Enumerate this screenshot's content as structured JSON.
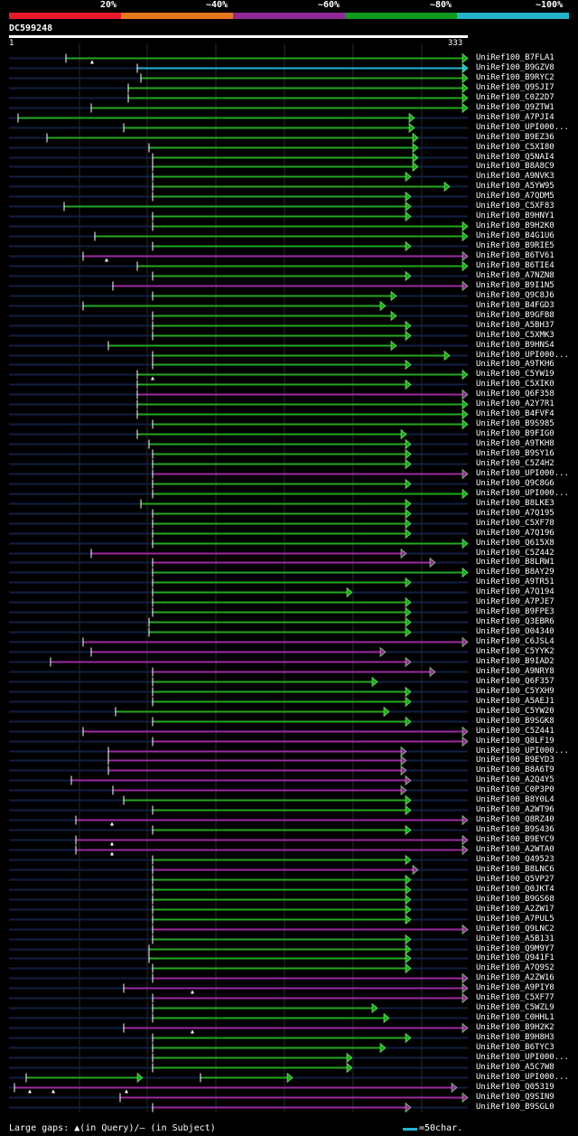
{
  "legend": [
    {
      "label": "20%",
      "color": "#e8192a"
    },
    {
      "label": "~40%",
      "color": "#e6781e"
    },
    {
      "label": "~60%",
      "color": "#8f2996"
    },
    {
      "label": "~80%",
      "color": "#0f9b1c"
    },
    {
      "label": "~100%",
      "color": "#24b3c9"
    }
  ],
  "query": {
    "id": "DC599248",
    "start": "1",
    "end": "333"
  },
  "colors": {
    "green": "#22a81e",
    "purple": "#9c2aa0",
    "cyan": "#24b3d6",
    "faint": "#111f44",
    "grid": "#2a2a2a"
  },
  "hits": [
    {
      "name": "UniRef100_B7FLA1",
      "color": "green",
      "s": 73,
      "e": 517,
      "marks": [
        102
      ]
    },
    {
      "name": "UniRef100_B9GZV8",
      "color": "cyan",
      "s": 152,
      "e": 517,
      "marks": []
    },
    {
      "name": "UniRef100_B9RYC2",
      "color": "green",
      "s": 156,
      "e": 517,
      "marks": []
    },
    {
      "name": "UniRef100_Q9SJI7",
      "color": "green",
      "s": 142,
      "e": 517,
      "marks": []
    },
    {
      "name": "UniRef100_C0Z2D7",
      "color": "green",
      "s": 142,
      "e": 517,
      "marks": []
    },
    {
      "name": "UniRef100_Q9ZTW1",
      "color": "green",
      "s": 101,
      "e": 517,
      "marks": []
    },
    {
      "name": "UniRef100_A7PJI4",
      "color": "green",
      "s": 20,
      "e": 458,
      "marks": []
    },
    {
      "name": "UniRef100_UPI000...",
      "color": "green",
      "s": 137,
      "e": 458,
      "marks": []
    },
    {
      "name": "UniRef100_B9EZ36",
      "color": "green",
      "s": 52,
      "e": 462,
      "marks": []
    },
    {
      "name": "UniRef100_C5XI80",
      "color": "green",
      "s": 165,
      "e": 462,
      "marks": []
    },
    {
      "name": "UniRef100_Q5NAI4",
      "color": "green",
      "s": 169,
      "e": 462,
      "marks": []
    },
    {
      "name": "UniRef100_B8A8C9",
      "color": "green",
      "s": 169,
      "e": 462,
      "marks": []
    },
    {
      "name": "UniRef100_A9NVK3",
      "color": "green",
      "s": 169,
      "e": 454,
      "marks": []
    },
    {
      "name": "UniRef100_A5YW95",
      "color": "green",
      "s": 169,
      "e": 497,
      "marks": []
    },
    {
      "name": "UniRef100_A7QDM5",
      "color": "green",
      "s": 169,
      "e": 454,
      "marks": []
    },
    {
      "name": "UniRef100_C5XF83",
      "color": "green",
      "s": 71,
      "e": 454,
      "marks": []
    },
    {
      "name": "UniRef100_B9HNY1",
      "color": "green",
      "s": 169,
      "e": 454,
      "marks": []
    },
    {
      "name": "UniRef100_B9H2K0",
      "color": "green",
      "s": 169,
      "e": 517,
      "marks": []
    },
    {
      "name": "UniRef100_B4G1U6",
      "color": "green",
      "s": 105,
      "e": 517,
      "marks": []
    },
    {
      "name": "UniRef100_B9RIE5",
      "color": "green",
      "s": 169,
      "e": 454,
      "marks": []
    },
    {
      "name": "UniRef100_B6TV61",
      "color": "purple",
      "s": 92,
      "e": 517,
      "marks": [
        118
      ]
    },
    {
      "name": "UniRef100_B6TIE4",
      "color": "green",
      "s": 152,
      "e": 517,
      "marks": []
    },
    {
      "name": "UniRef100_A7NZN8",
      "color": "green",
      "s": 169,
      "e": 454,
      "marks": []
    },
    {
      "name": "UniRef100_B9I1N5",
      "color": "purple",
      "s": 125,
      "e": 517,
      "marks": []
    },
    {
      "name": "UniRef100_Q9C8J6",
      "color": "green",
      "s": 169,
      "e": 438,
      "marks": []
    },
    {
      "name": "UniRef100_B4FGD3",
      "color": "green",
      "s": 92,
      "e": 426,
      "marks": []
    },
    {
      "name": "UniRef100_B9GFB8",
      "color": "green",
      "s": 169,
      "e": 438,
      "marks": []
    },
    {
      "name": "UniRef100_A5BH37",
      "color": "green",
      "s": 169,
      "e": 454,
      "marks": []
    },
    {
      "name": "UniRef100_C5XMK3",
      "color": "green",
      "s": 169,
      "e": 454,
      "marks": []
    },
    {
      "name": "UniRef100_B9HNS4",
      "color": "green",
      "s": 120,
      "e": 438,
      "marks": []
    },
    {
      "name": "UniRef100_UPI000...",
      "color": "green",
      "s": 169,
      "e": 497,
      "marks": []
    },
    {
      "name": "UniRef100_A9TKH6",
      "color": "green",
      "s": 169,
      "e": 454,
      "marks": []
    },
    {
      "name": "UniRef100_C5YW19",
      "color": "green",
      "s": 152,
      "e": 517,
      "marks": [
        169
      ]
    },
    {
      "name": "UniRef100_C5XIK0",
      "color": "green",
      "s": 152,
      "e": 454,
      "marks": []
    },
    {
      "name": "UniRef100_Q6F358",
      "color": "purple",
      "s": 152,
      "e": 517,
      "marks": []
    },
    {
      "name": "UniRef100_A2Y7R1",
      "color": "green",
      "s": 152,
      "e": 517,
      "marks": []
    },
    {
      "name": "UniRef100_B4FVF4",
      "color": "green",
      "s": 152,
      "e": 517,
      "marks": []
    },
    {
      "name": "UniRef100_B9S985",
      "color": "green",
      "s": 169,
      "e": 517,
      "marks": []
    },
    {
      "name": "UniRef100_B9FIG0",
      "color": "green",
      "s": 152,
      "e": 449,
      "marks": []
    },
    {
      "name": "UniRef100_A9TKH8",
      "color": "green",
      "s": 165,
      "e": 454,
      "marks": []
    },
    {
      "name": "UniRef100_B9SY16",
      "color": "green",
      "s": 169,
      "e": 454,
      "marks": []
    },
    {
      "name": "UniRef100_C5Z4H2",
      "color": "green",
      "s": 169,
      "e": 454,
      "marks": []
    },
    {
      "name": "UniRef100_UPI000...",
      "color": "purple",
      "s": 169,
      "e": 517,
      "marks": []
    },
    {
      "name": "UniRef100_Q9C8G6",
      "color": "green",
      "s": 169,
      "e": 454,
      "marks": []
    },
    {
      "name": "UniRef100_UPI000...",
      "color": "green",
      "s": 169,
      "e": 517,
      "marks": []
    },
    {
      "name": "UniRef100_B8LKE3",
      "color": "green",
      "s": 156,
      "e": 454,
      "marks": []
    },
    {
      "name": "UniRef100_A7Q195",
      "color": "green",
      "s": 169,
      "e": 454,
      "marks": []
    },
    {
      "name": "UniRef100_C5XF78",
      "color": "green",
      "s": 169,
      "e": 454,
      "marks": []
    },
    {
      "name": "UniRef100_A7Q196",
      "color": "green",
      "s": 169,
      "e": 454,
      "marks": []
    },
    {
      "name": "UniRef100_Q615X8",
      "color": "green",
      "s": 169,
      "e": 517,
      "marks": []
    },
    {
      "name": "UniRef100_C5Z442",
      "color": "purple",
      "s": 101,
      "e": 449,
      "marks": []
    },
    {
      "name": "UniRef100_B8LRW1",
      "color": "purple",
      "s": 169,
      "e": 481,
      "marks": []
    },
    {
      "name": "UniRef100_B8AY29",
      "color": "green",
      "s": 169,
      "e": 517,
      "marks": []
    },
    {
      "name": "UniRef100_A9TR51",
      "color": "green",
      "s": 169,
      "e": 454,
      "marks": []
    },
    {
      "name": "UniRef100_A7Q194",
      "color": "green",
      "s": 169,
      "e": 389,
      "marks": []
    },
    {
      "name": "UniRef100_A7PJE7",
      "color": "green",
      "s": 169,
      "e": 454,
      "marks": []
    },
    {
      "name": "UniRef100_B9FPE3",
      "color": "green",
      "s": 169,
      "e": 454,
      "marks": []
    },
    {
      "name": "UniRef100_Q3EBR6",
      "color": "green",
      "s": 165,
      "e": 454,
      "marks": []
    },
    {
      "name": "UniRef100_O04340",
      "color": "green",
      "s": 165,
      "e": 454,
      "marks": []
    },
    {
      "name": "UniRef100_C6JSL4",
      "color": "purple",
      "s": 92,
      "e": 517,
      "marks": []
    },
    {
      "name": "UniRef100_C5YYK2",
      "color": "purple",
      "s": 101,
      "e": 426,
      "marks": []
    },
    {
      "name": "UniRef100_B9IAD2",
      "color": "purple",
      "s": 56,
      "e": 454,
      "marks": []
    },
    {
      "name": "UniRef100_A9NRY8",
      "color": "purple",
      "s": 169,
      "e": 481,
      "marks": []
    },
    {
      "name": "UniRef100_Q6F357",
      "color": "green",
      "s": 169,
      "e": 417,
      "marks": []
    },
    {
      "name": "UniRef100_C5YXH9",
      "color": "green",
      "s": 169,
      "e": 454,
      "marks": []
    },
    {
      "name": "UniRef100_A5AEJ1",
      "color": "green",
      "s": 169,
      "e": 454,
      "marks": []
    },
    {
      "name": "UniRef100_C5YW20",
      "color": "green",
      "s": 128,
      "e": 430,
      "marks": []
    },
    {
      "name": "UniRef100_B9SGK8",
      "color": "green",
      "s": 169,
      "e": 454,
      "marks": []
    },
    {
      "name": "UniRef100_C5Z441",
      "color": "purple",
      "s": 92,
      "e": 517,
      "marks": []
    },
    {
      "name": "UniRef100_Q8LF19",
      "color": "purple",
      "s": 169,
      "e": 517,
      "marks": []
    },
    {
      "name": "UniRef100_UPI000...",
      "color": "purple",
      "s": 120,
      "e": 449,
      "marks": []
    },
    {
      "name": "UniRef100_B9EYD3",
      "color": "purple",
      "s": 120,
      "e": 449,
      "marks": []
    },
    {
      "name": "UniRef100_B8A6T9",
      "color": "purple",
      "s": 120,
      "e": 449,
      "marks": []
    },
    {
      "name": "UniRef100_A2Q4Y5",
      "color": "purple",
      "s": 79,
      "e": 454,
      "marks": []
    },
    {
      "name": "UniRef100_C0P3P0",
      "color": "purple",
      "s": 125,
      "e": 449,
      "marks": []
    },
    {
      "name": "UniRef100_B8Y0L4",
      "color": "green",
      "s": 137,
      "e": 454,
      "marks": []
    },
    {
      "name": "UniRef100_A2WT96",
      "color": "green",
      "s": 169,
      "e": 454,
      "marks": []
    },
    {
      "name": "UniRef100_Q8RZ40",
      "color": "purple",
      "s": 84,
      "e": 517,
      "marks": [
        124
      ]
    },
    {
      "name": "UniRef100_B9S436",
      "color": "green",
      "s": 169,
      "e": 454,
      "marks": []
    },
    {
      "name": "UniRef100_B9EYC9",
      "color": "purple",
      "s": 84,
      "e": 517,
      "marks": [
        124
      ]
    },
    {
      "name": "UniRef100_A2WTA0",
      "color": "purple",
      "s": 84,
      "e": 517,
      "marks": [
        124
      ]
    },
    {
      "name": "UniRef100_Q49523",
      "color": "green",
      "s": 169,
      "e": 454,
      "marks": []
    },
    {
      "name": "UniRef100_B8LNC6",
      "color": "purple",
      "s": 169,
      "e": 462,
      "marks": []
    },
    {
      "name": "UniRef100_Q5VP27",
      "color": "green",
      "s": 169,
      "e": 454,
      "marks": []
    },
    {
      "name": "UniRef100_Q0JKT4",
      "color": "green",
      "s": 169,
      "e": 454,
      "marks": []
    },
    {
      "name": "UniRef100_B9GS68",
      "color": "green",
      "s": 169,
      "e": 454,
      "marks": []
    },
    {
      "name": "UniRef100_A2ZW17",
      "color": "green",
      "s": 169,
      "e": 454,
      "marks": []
    },
    {
      "name": "UniRef100_A7PUL5",
      "color": "green",
      "s": 169,
      "e": 454,
      "marks": []
    },
    {
      "name": "UniRef100_Q9LNC2",
      "color": "purple",
      "s": 169,
      "e": 517,
      "marks": []
    },
    {
      "name": "UniRef100_A5B131",
      "color": "green",
      "s": 169,
      "e": 454,
      "marks": []
    },
    {
      "name": "UniRef100_Q9M9Y7",
      "color": "green",
      "s": 165,
      "e": 454,
      "marks": []
    },
    {
      "name": "UniRef100_Q941F1",
      "color": "green",
      "s": 165,
      "e": 454,
      "marks": []
    },
    {
      "name": "UniRef100_A7Q9S2",
      "color": "green",
      "s": 169,
      "e": 454,
      "marks": []
    },
    {
      "name": "UniRef100_A2ZW16",
      "color": "purple",
      "s": 169,
      "e": 517,
      "marks": []
    },
    {
      "name": "UniRef100_A9PIY8",
      "color": "purple",
      "s": 137,
      "e": 517,
      "marks": [
        213
      ]
    },
    {
      "name": "UniRef100_C5XF77",
      "color": "purple",
      "s": 169,
      "e": 517,
      "marks": []
    },
    {
      "name": "UniRef100_C5WZL9",
      "color": "green",
      "s": 169,
      "e": 417,
      "marks": []
    },
    {
      "name": "UniRef100_C0HHL1",
      "color": "green",
      "s": 169,
      "e": 430,
      "marks": []
    },
    {
      "name": "UniRef100_B9H2K2",
      "color": "purple",
      "s": 137,
      "e": 517,
      "marks": [
        213
      ]
    },
    {
      "name": "UniRef100_B9H8H3",
      "color": "green",
      "s": 169,
      "e": 454,
      "marks": []
    },
    {
      "name": "UniRef100_B6TYC3",
      "color": "green",
      "s": 169,
      "e": 426,
      "marks": []
    },
    {
      "name": "UniRef100_UPI000...",
      "color": "green",
      "s": 169,
      "e": 389,
      "marks": []
    },
    {
      "name": "UniRef100_A5C7W8",
      "color": "green",
      "s": 169,
      "e": 389,
      "marks": []
    },
    {
      "name": "UniRef100_UPI000...",
      "color": "green",
      "s": 29,
      "e": 157,
      "s2": 222,
      "e2": 323,
      "marks": []
    },
    {
      "name": "UniRef100_Q05319",
      "color": "purple",
      "s": 16,
      "e": 505,
      "marks": [
        33,
        59,
        140
      ]
    },
    {
      "name": "UniRef100_Q9SIN9",
      "color": "purple",
      "s": 133,
      "e": 517,
      "marks": []
    },
    {
      "name": "UniRef100_B9SGL0",
      "color": "purple",
      "s": 169,
      "e": 454,
      "marks": []
    }
  ],
  "footer": {
    "gaps_label": "Large gaps: ▲(in Query)/– (in Subject)",
    "scale_label": "=50char."
  }
}
